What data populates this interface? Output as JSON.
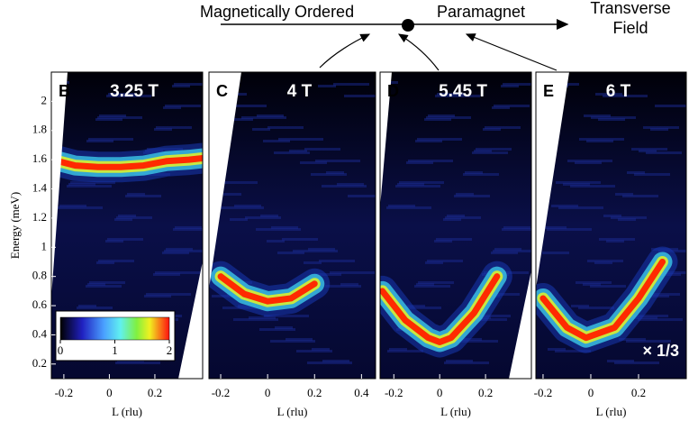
{
  "diagram": {
    "left_label": "Magnetically Ordered",
    "right_label": "Paramagnet",
    "axis_label": [
      "Transverse",
      "Field"
    ]
  },
  "chart_data": [
    {
      "type": "line",
      "panel_label": "B",
      "title": "3.25 T",
      "xlabel": "L (rlu)",
      "ylabel": "Energy (meV)",
      "xlim": [
        -0.255,
        0.41
      ],
      "xticks": [
        -0.2,
        0,
        0.2
      ],
      "ylim": [
        0.1,
        2.2
      ],
      "yticks": [
        0.2,
        0.4,
        0.6,
        0.8,
        1,
        1.2,
        1.4,
        1.6,
        1.8,
        2
      ],
      "colorbar": {
        "ticks": [
          0,
          1,
          2
        ],
        "lim": [
          0,
          2
        ]
      },
      "x": [
        -0.25,
        -0.15,
        -0.05,
        0.05,
        0.15,
        0.25,
        0.35,
        0.41
      ],
      "series": [
        {
          "color": "#ff2a00",
          "values": [
            1.6,
            1.56,
            1.55,
            1.55,
            1.56,
            1.59,
            1.6,
            1.61
          ]
        }
      ]
    },
    {
      "type": "line",
      "panel_label": "C",
      "title": "4 T",
      "xlabel": "L (rlu)",
      "xlim": [
        -0.25,
        0.46
      ],
      "xticks": [
        -0.2,
        0,
        0.2,
        0.4
      ],
      "ylim": [
        0.1,
        2.2
      ],
      "x": [
        -0.2,
        -0.1,
        0,
        0.1,
        0.2
      ],
      "series": [
        {
          "color": "#ff2a00",
          "values": [
            0.8,
            0.68,
            0.63,
            0.65,
            0.75
          ]
        }
      ]
    },
    {
      "type": "line",
      "panel_label": "D",
      "title": "5.45 T",
      "xlabel": "L (rlu)",
      "xlim": [
        -0.26,
        0.4
      ],
      "xticks": [
        -0.2,
        0,
        0.2
      ],
      "ylim": [
        0.1,
        2.2
      ],
      "x": [
        -0.25,
        -0.15,
        -0.05,
        0,
        0.05,
        0.15,
        0.25
      ],
      "series": [
        {
          "color": "#ff2a00",
          "values": [
            0.7,
            0.5,
            0.38,
            0.35,
            0.38,
            0.55,
            0.8
          ]
        }
      ]
    },
    {
      "type": "line",
      "panel_label": "E",
      "title": "6 T",
      "xlabel": "L (rlu)",
      "annotation": "× 1/3",
      "xlim": [
        -0.23,
        0.4
      ],
      "xticks": [
        -0.2,
        0,
        0.2
      ],
      "ylim": [
        0.1,
        2.2
      ],
      "x": [
        -0.2,
        -0.1,
        -0.02,
        0.1,
        0.2,
        0.3
      ],
      "series": [
        {
          "color": "#ff2a00",
          "values": [
            0.65,
            0.45,
            0.38,
            0.45,
            0.65,
            0.9
          ]
        }
      ]
    }
  ]
}
